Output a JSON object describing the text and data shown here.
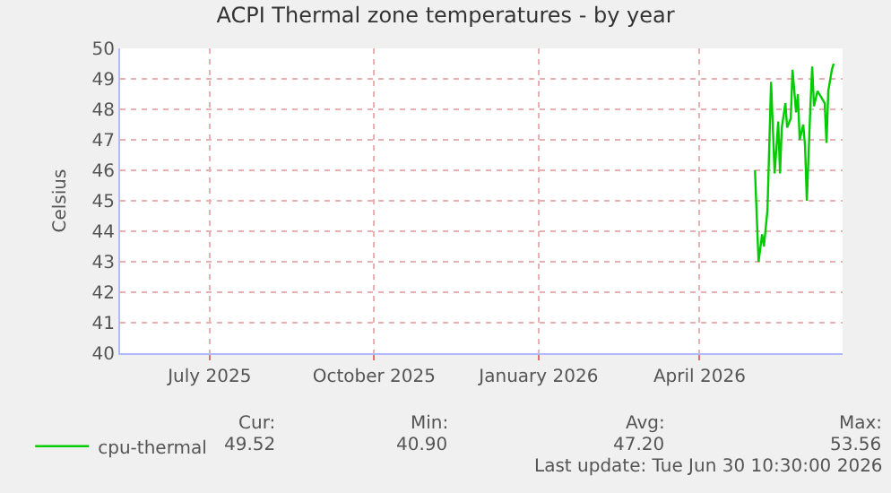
{
  "chart_data": {
    "type": "line",
    "title": "ACPI Thermal zone temperatures - by year",
    "ylabel": "Celsius",
    "x": [
      "2026-05-02",
      "2026-05-04",
      "2026-05-06",
      "2026-05-07",
      "2026-05-09",
      "2026-05-11",
      "2026-05-13",
      "2026-05-15",
      "2026-05-16",
      "2026-05-17",
      "2026-05-19",
      "2026-05-20",
      "2026-05-22",
      "2026-05-23",
      "2026-05-25",
      "2026-05-26",
      "2026-05-27",
      "2026-05-29",
      "2026-05-30",
      "2026-05-31",
      "2026-06-02",
      "2026-06-03",
      "2026-06-04",
      "2026-06-06",
      "2026-06-07",
      "2026-06-08",
      "2026-06-10",
      "2026-06-11",
      "2026-06-12",
      "2026-06-14",
      "2026-06-15"
    ],
    "series": [
      {
        "name": "cpu-thermal",
        "color": "#00cc00",
        "values": [
          46.0,
          43.0,
          43.9,
          43.5,
          44.7,
          48.9,
          45.9,
          47.6,
          45.9,
          47.4,
          48.2,
          47.4,
          47.7,
          49.3,
          47.9,
          48.5,
          47.0,
          47.5,
          46.8,
          45.0,
          48.1,
          49.4,
          48.1,
          48.6,
          48.5,
          48.4,
          48.2,
          46.9,
          48.6,
          49.3,
          49.5
        ]
      }
    ],
    "xlim": [
      "2025-05-12",
      "2026-06-20"
    ],
    "xticks": [
      {
        "value": "2025-07-01",
        "label": "July 2025"
      },
      {
        "value": "2025-10-01",
        "label": "October 2025"
      },
      {
        "value": "2026-01-01",
        "label": "January 2026"
      },
      {
        "value": "2026-04-01",
        "label": "April 2026"
      }
    ],
    "ylim": [
      40,
      50
    ],
    "yticks": [
      40,
      41,
      42,
      43,
      44,
      45,
      46,
      47,
      48,
      49,
      50
    ],
    "grid": true,
    "legend": "bottom left",
    "marker": "none",
    "line_style": "solid",
    "annotations": [
      "Cur:",
      "49.52",
      "Min:",
      "40.90",
      "Avg:",
      "47.20",
      "Max:",
      "53.56",
      "Last update: Tue Jun 30 10:30:00 2026"
    ]
  }
}
